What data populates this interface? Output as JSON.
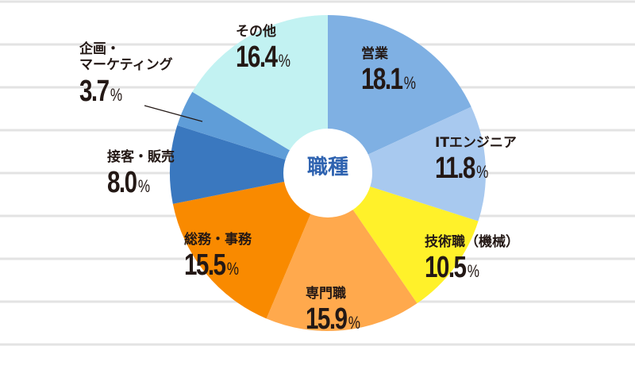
{
  "chart_data": {
    "type": "pie",
    "title": "職種",
    "unit": "%",
    "categories": [
      "営業",
      "ITエンジニア",
      "技術職（機械）",
      "専門職",
      "総務・事務",
      "接客・販売",
      "企画・\nマーケティング",
      "その他"
    ],
    "values": [
      18.1,
      11.8,
      10.5,
      15.9,
      15.5,
      8.0,
      3.7,
      16.4
    ],
    "colors": [
      "#7fb0e3",
      "#a8c9ef",
      "#fff12a",
      "#ffa94d",
      "#f98a00",
      "#3a78bf",
      "#5f9dd8",
      "#c2f2f2"
    ],
    "start": "12 o'clock",
    "direction": "clockwise",
    "donut": true,
    "grid": "horizontal lines"
  }
}
